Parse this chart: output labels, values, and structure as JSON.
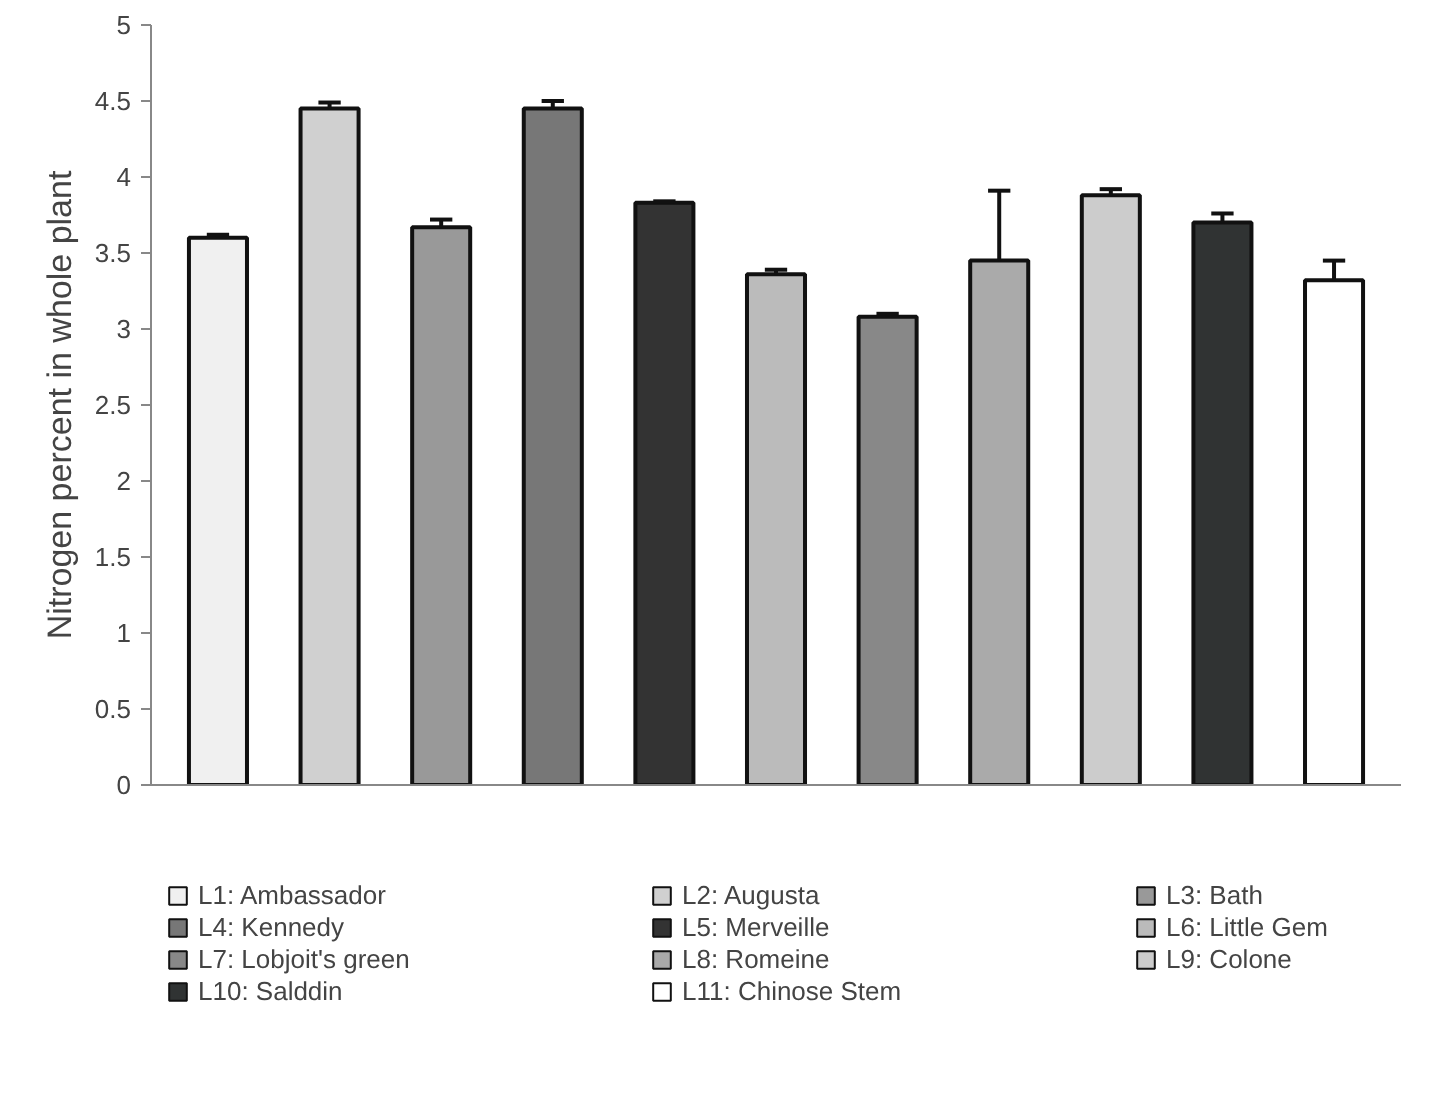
{
  "chart_data": {
    "type": "bar",
    "ylabel": "Nitrogen percent in whole plant",
    "categories": [
      null,
      null,
      null,
      null,
      null,
      null,
      null,
      null,
      null,
      null,
      null
    ],
    "ylim": [
      0,
      5
    ],
    "yticks": [
      0,
      0.5,
      1,
      1.5,
      2,
      2.5,
      3,
      3.5,
      4,
      4.5,
      5
    ],
    "grid": false,
    "legend": "bottom",
    "series": [
      {
        "name": "L1: Ambassador",
        "color": "#f0f0f0",
        "values": [
          3.6,
          null,
          null,
          null,
          null,
          null,
          null,
          null,
          null,
          null,
          null
        ],
        "errors": [
          [
            3.6,
            3.62
          ],
          null,
          null,
          null,
          null,
          null,
          null,
          null,
          null,
          null,
          null
        ]
      },
      {
        "name": "L2: Augusta",
        "color": "#d0d0d0",
        "values": [
          null,
          4.45,
          null,
          null,
          null,
          null,
          null,
          null,
          null,
          null,
          null
        ],
        "errors": [
          null,
          [
            4.45,
            4.49
          ],
          null,
          null,
          null,
          null,
          null,
          null,
          null,
          null,
          null
        ]
      },
      {
        "name": "L3: Bath",
        "color": "#999999",
        "values": [
          null,
          null,
          3.67,
          null,
          null,
          null,
          null,
          null,
          null,
          null,
          null
        ],
        "errors": [
          null,
          null,
          [
            3.67,
            3.72
          ],
          null,
          null,
          null,
          null,
          null,
          null,
          null,
          null
        ]
      },
      {
        "name": "L4: Kennedy",
        "color": "#777777",
        "values": [
          null,
          null,
          null,
          4.45,
          null,
          null,
          null,
          null,
          null,
          null,
          null
        ],
        "errors": [
          null,
          null,
          null,
          [
            4.45,
            4.5
          ],
          null,
          null,
          null,
          null,
          null,
          null,
          null
        ]
      },
      {
        "name": "L5: Merveille",
        "color": "#333333",
        "values": [
          null,
          null,
          null,
          null,
          3.83,
          null,
          null,
          null,
          null,
          null,
          null
        ],
        "errors": [
          null,
          null,
          null,
          null,
          [
            3.83,
            3.84
          ],
          null,
          null,
          null,
          null,
          null,
          null
        ]
      },
      {
        "name": "L6: Little Gem",
        "color": "#bbbbbb",
        "values": [
          null,
          null,
          null,
          null,
          null,
          3.36,
          null,
          null,
          null,
          null,
          null
        ],
        "errors": [
          null,
          null,
          null,
          null,
          null,
          [
            3.36,
            3.39
          ],
          null,
          null,
          null,
          null,
          null
        ]
      },
      {
        "name": "L7: Lobjoit's green",
        "color": "#888888",
        "values": [
          null,
          null,
          null,
          null,
          null,
          null,
          3.08,
          null,
          null,
          null,
          null
        ],
        "errors": [
          null,
          null,
          null,
          null,
          null,
          null,
          [
            3.08,
            3.1
          ],
          null,
          null,
          null,
          null
        ]
      },
      {
        "name": "L8: Romeine",
        "color": "#aaaaaa",
        "values": [
          null,
          null,
          null,
          null,
          null,
          null,
          null,
          3.45,
          null,
          null,
          null
        ],
        "errors": [
          null,
          null,
          null,
          null,
          null,
          null,
          null,
          [
            3.45,
            3.91
          ],
          null,
          null,
          null
        ]
      },
      {
        "name": "L9: Colone",
        "color": "#cccccc",
        "values": [
          null,
          null,
          null,
          null,
          null,
          null,
          null,
          null,
          3.88,
          null,
          null
        ],
        "errors": [
          null,
          null,
          null,
          null,
          null,
          null,
          null,
          null,
          [
            3.88,
            3.92
          ],
          null,
          null
        ]
      },
      {
        "name": "L10: Salddin",
        "color": "#303333",
        "values": [
          null,
          null,
          null,
          null,
          null,
          null,
          null,
          null,
          null,
          3.7,
          null
        ],
        "errors": [
          null,
          null,
          null,
          null,
          null,
          null,
          null,
          null,
          null,
          [
            3.7,
            3.76
          ],
          null
        ]
      },
      {
        "name": "L11: Chinose Stem",
        "color": "#ffffff",
        "values": [
          null,
          null,
          null,
          null,
          null,
          null,
          null,
          null,
          null,
          null,
          3.32
        ],
        "errors": [
          null,
          null,
          null,
          null,
          null,
          null,
          null,
          null,
          null,
          null,
          [
            3.32,
            3.45
          ]
        ]
      }
    ]
  }
}
